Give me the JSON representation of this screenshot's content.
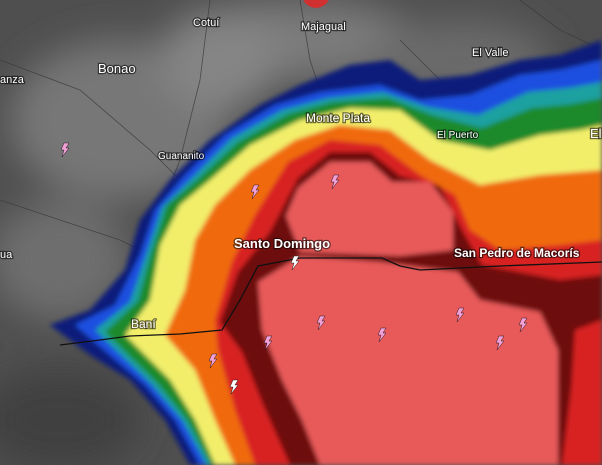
{
  "places": [
    {
      "label": "Cotuí"
    },
    {
      "label": "Majagual"
    },
    {
      "label": "Bonao"
    },
    {
      "label": "El Valle"
    },
    {
      "label": "anza"
    },
    {
      "label": "Guananito"
    },
    {
      "label": "Monte Plata"
    },
    {
      "label": "El Puerto"
    },
    {
      "label": "El"
    },
    {
      "label": "Santo Domingo"
    },
    {
      "label": "San Pedro de Macorís"
    },
    {
      "label": "Baní"
    },
    {
      "label": "ua"
    }
  ]
}
